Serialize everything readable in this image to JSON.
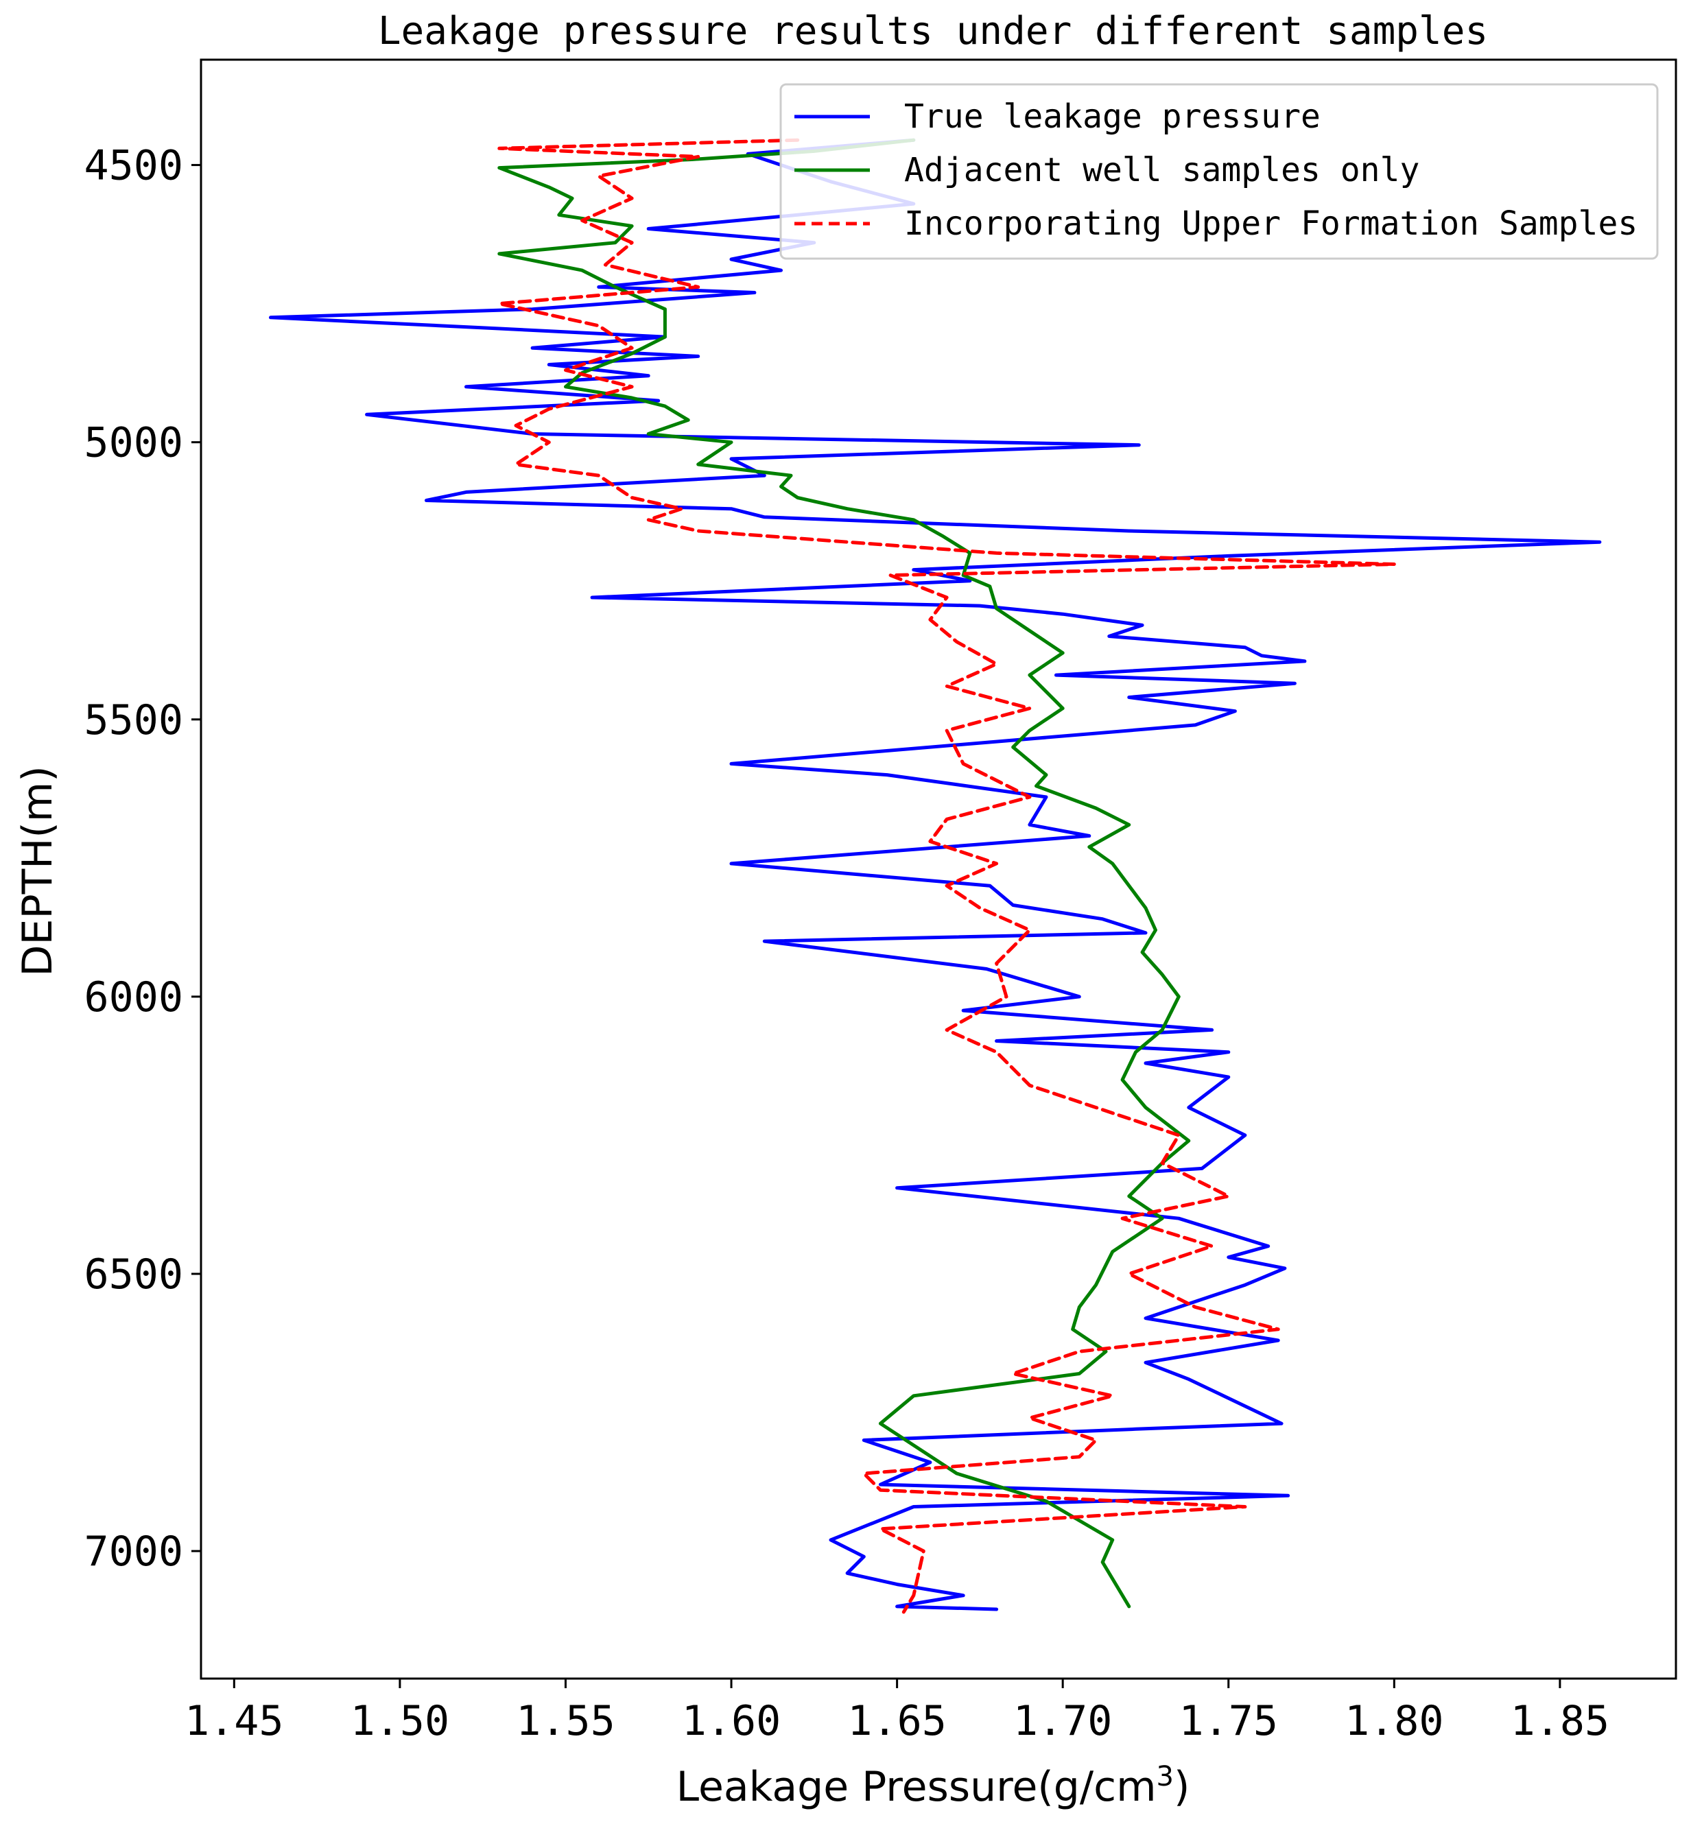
{
  "chart_data": {
    "type": "line",
    "title": "Leakage pressure results under different samples",
    "xlabel_main": "Leakage Pressure(g/cm",
    "xlabel_sup": "3",
    "xlabel_close": ")",
    "ylabel": "DEPTH(m)",
    "xlim": [
      1.44,
      1.885
    ],
    "ylim": [
      7230,
      4310
    ],
    "y_inverted": true,
    "x_ticks": [
      "1.45",
      "1.50",
      "1.55",
      "1.60",
      "1.65",
      "1.70",
      "1.75",
      "1.80",
      "1.85"
    ],
    "x_tick_values": [
      1.45,
      1.5,
      1.55,
      1.6,
      1.65,
      1.7,
      1.75,
      1.8,
      1.85
    ],
    "y_ticks": [
      "4500",
      "5000",
      "5500",
      "6000",
      "6500",
      "7000"
    ],
    "y_tick_values": [
      4500,
      5000,
      5500,
      6000,
      6500,
      7000
    ],
    "grid": false,
    "legend_position": "top-right",
    "series": [
      {
        "name": "True leakage pressure",
        "color": "#0000ff",
        "style": "solid",
        "x": [
          1.655,
          1.605,
          1.63,
          1.655,
          1.62,
          1.575,
          1.625,
          1.6,
          1.615,
          1.56,
          1.607,
          1.54,
          1.461,
          1.53,
          1.58,
          1.54,
          1.59,
          1.545,
          1.575,
          1.52,
          1.578,
          1.49,
          1.54,
          1.723,
          1.6,
          1.61,
          1.52,
          1.508,
          1.6,
          1.61,
          1.72,
          1.862,
          1.75,
          1.655,
          1.672,
          1.558,
          1.675,
          1.7,
          1.724,
          1.714,
          1.755,
          1.76,
          1.773,
          1.698,
          1.77,
          1.72,
          1.752,
          1.74,
          1.6,
          1.647,
          1.695,
          1.69,
          1.708,
          1.6,
          1.678,
          1.685,
          1.712,
          1.725,
          1.61,
          1.677,
          1.705,
          1.67,
          1.745,
          1.68,
          1.75,
          1.725,
          1.75,
          1.738,
          1.755,
          1.742,
          1.65,
          1.735,
          1.762,
          1.75,
          1.767,
          1.755,
          1.745,
          1.725,
          1.765,
          1.725,
          1.738,
          1.766,
          1.722,
          1.64,
          1.66,
          1.645,
          1.768,
          1.655,
          1.63,
          1.64,
          1.635,
          1.65,
          1.67,
          1.65,
          1.68
        ],
        "y": [
          4455,
          4480,
          4530,
          4570,
          4590,
          4615,
          4640,
          4670,
          4690,
          4720,
          4730,
          4760,
          4775,
          4795,
          4810,
          4830,
          4845,
          4860,
          4880,
          4900,
          4925,
          4950,
          4985,
          5005,
          5030,
          5060,
          5090,
          5105,
          5120,
          5135,
          5160,
          5180,
          5205,
          5230,
          5250,
          5280,
          5295,
          5310,
          5330,
          5350,
          5370,
          5385,
          5395,
          5420,
          5435,
          5460,
          5485,
          5510,
          5580,
          5600,
          5640,
          5690,
          5710,
          5760,
          5800,
          5835,
          5860,
          5885,
          5900,
          5950,
          6000,
          6025,
          6060,
          6080,
          6100,
          6120,
          6145,
          6200,
          6250,
          6310,
          6345,
          6400,
          6450,
          6470,
          6490,
          6520,
          6540,
          6580,
          6620,
          6660,
          6690,
          6770,
          6780,
          6800,
          6840,
          6880,
          6900,
          6920,
          6980,
          7010,
          7040,
          7060,
          7080,
          7100,
          7105
        ]
      },
      {
        "name": "Adjacent well samples only",
        "color": "#008000",
        "style": "solid",
        "x": [
          1.655,
          1.625,
          1.588,
          1.53,
          1.545,
          1.552,
          1.548,
          1.57,
          1.565,
          1.53,
          1.555,
          1.565,
          1.58,
          1.58,
          1.57,
          1.555,
          1.55,
          1.57,
          1.58,
          1.587,
          1.575,
          1.6,
          1.59,
          1.618,
          1.615,
          1.62,
          1.635,
          1.655,
          1.664,
          1.672,
          1.67,
          1.678,
          1.68,
          1.69,
          1.7,
          1.69,
          1.7,
          1.69,
          1.685,
          1.695,
          1.692,
          1.71,
          1.72,
          1.708,
          1.715,
          1.72,
          1.725,
          1.728,
          1.724,
          1.73,
          1.735,
          1.73,
          1.722,
          1.718,
          1.725,
          1.738,
          1.73,
          1.72,
          1.73,
          1.715,
          1.71,
          1.705,
          1.703,
          1.713,
          1.705,
          1.655,
          1.645,
          1.668,
          1.695,
          1.715,
          1.712,
          1.72
        ],
        "y": [
          4455,
          4475,
          4490,
          4505,
          4540,
          4560,
          4590,
          4610,
          4640,
          4660,
          4690,
          4720,
          4760,
          4810,
          4840,
          4875,
          4900,
          4920,
          4935,
          4960,
          4985,
          5000,
          5040,
          5060,
          5080,
          5100,
          5120,
          5140,
          5170,
          5200,
          5240,
          5260,
          5300,
          5340,
          5380,
          5420,
          5480,
          5520,
          5550,
          5600,
          5620,
          5660,
          5690,
          5730,
          5760,
          5800,
          5840,
          5880,
          5920,
          5960,
          6000,
          6060,
          6100,
          6150,
          6200,
          6260,
          6300,
          6360,
          6400,
          6460,
          6520,
          6560,
          6600,
          6640,
          6680,
          6720,
          6770,
          6860,
          6910,
          6980,
          7020,
          7100
        ]
      },
      {
        "name": "Incorporating Upper Formation Samples",
        "color": "#ff0000",
        "style": "dashed",
        "x": [
          1.62,
          1.53,
          1.59,
          1.56,
          1.57,
          1.555,
          1.57,
          1.562,
          1.59,
          1.53,
          1.56,
          1.57,
          1.55,
          1.57,
          1.545,
          1.535,
          1.545,
          1.535,
          1.56,
          1.57,
          1.585,
          1.575,
          1.59,
          1.68,
          1.8,
          1.648,
          1.665,
          1.66,
          1.668,
          1.68,
          1.665,
          1.69,
          1.665,
          1.67,
          1.69,
          1.665,
          1.66,
          1.68,
          1.665,
          1.675,
          1.69,
          1.68,
          1.683,
          1.665,
          1.68,
          1.69,
          1.71,
          1.735,
          1.73,
          1.75,
          1.718,
          1.745,
          1.72,
          1.74,
          1.765,
          1.705,
          1.685,
          1.715,
          1.69,
          1.71,
          1.705,
          1.64,
          1.645,
          1.755,
          1.645,
          1.658,
          1.655,
          1.652
        ],
        "y": [
          4455,
          4470,
          4485,
          4520,
          4560,
          4600,
          4640,
          4680,
          4720,
          4750,
          4790,
          4830,
          4870,
          4900,
          4940,
          4970,
          5000,
          5040,
          5060,
          5100,
          5120,
          5140,
          5160,
          5200,
          5220,
          5240,
          5280,
          5320,
          5360,
          5400,
          5440,
          5480,
          5520,
          5580,
          5640,
          5680,
          5720,
          5760,
          5800,
          5840,
          5880,
          5940,
          6000,
          6060,
          6100,
          6160,
          6200,
          6250,
          6300,
          6360,
          6400,
          6450,
          6500,
          6560,
          6600,
          6640,
          6680,
          6720,
          6760,
          6800,
          6830,
          6860,
          6890,
          6920,
          6960,
          7000,
          7080,
          7110
        ]
      }
    ]
  }
}
